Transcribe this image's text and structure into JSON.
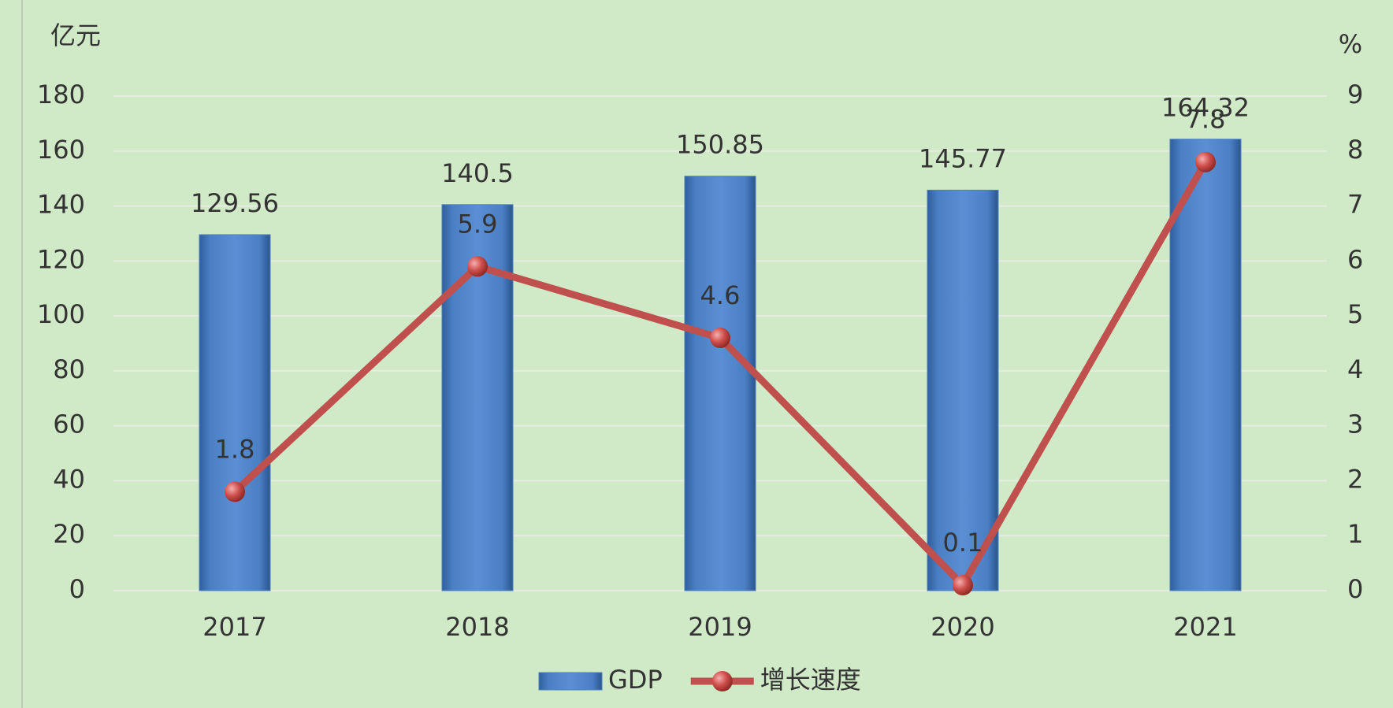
{
  "chart_data": {
    "type": "bar",
    "categories": [
      "2017",
      "2018",
      "2019",
      "2020",
      "2021"
    ],
    "series": [
      {
        "name": "GDP",
        "type": "bar",
        "color": "#4f81bd",
        "values": [
          129.56,
          140.5,
          150.85,
          145.77,
          164.32
        ]
      },
      {
        "name": "增长速度",
        "type": "line",
        "axis": "y2",
        "color": "#c0504d",
        "values": [
          1.8,
          5.9,
          4.6,
          0.1,
          7.8
        ]
      }
    ],
    "ylabel": "亿元",
    "y2label": "%",
    "ylim": [
      0,
      180
    ],
    "yticks": [
      0,
      20,
      40,
      60,
      80,
      100,
      120,
      140,
      160,
      180
    ],
    "y2lim": [
      0,
      9
    ],
    "y2ticks": [
      0,
      1,
      2,
      3,
      4,
      5,
      6,
      7,
      8,
      9
    ],
    "grid": true,
    "legend": "bottom"
  }
}
